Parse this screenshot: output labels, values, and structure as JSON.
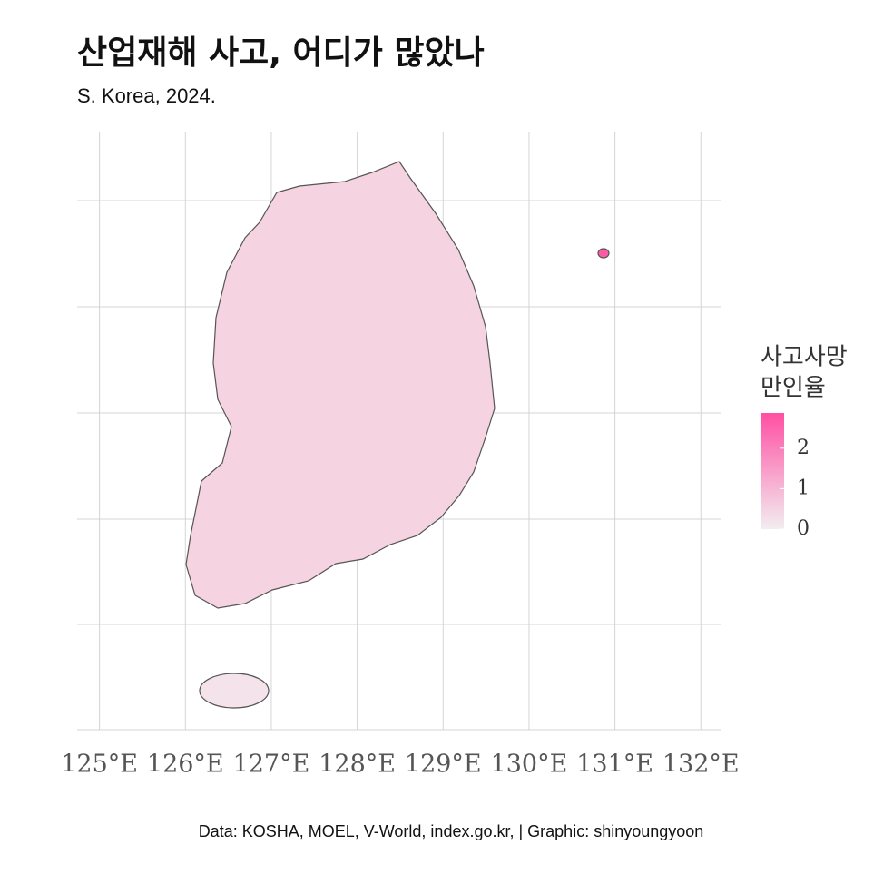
{
  "chart_data": {
    "type": "choropleth",
    "title": "산업재해 사고, 어디가 많았나",
    "subtitle": "S. Korea, 2024.",
    "caption": "Data: KOSHA, MOEL, V-World, index.go.kr,  | Graphic: shinyoungyoon",
    "xlim": [
      124.74,
      132.24
    ],
    "xticks": [
      {
        "value": 125,
        "label": "125°E"
      },
      {
        "value": 126,
        "label": "126°E"
      },
      {
        "value": 127,
        "label": "127°E"
      },
      {
        "value": 128,
        "label": "128°E"
      },
      {
        "value": 129,
        "label": "129°E"
      },
      {
        "value": 130,
        "label": "130°E"
      },
      {
        "value": 131,
        "label": "131°E"
      },
      {
        "value": 132,
        "label": "132°E"
      }
    ],
    "grid": true,
    "legend_title": [
      "사고사망",
      "만인율"
    ],
    "colorbar": {
      "lim": [
        0,
        2.87
      ],
      "ticks": [
        0,
        1,
        2
      ],
      "colors": [
        "#f2eef0",
        "#ff4fa3"
      ]
    }
  }
}
